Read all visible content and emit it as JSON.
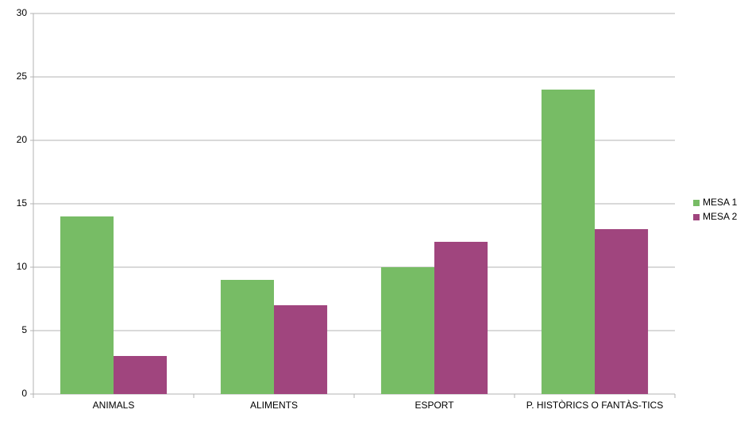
{
  "chart_data": {
    "type": "bar",
    "categories": [
      "ANIMALS",
      "ALIMENTS",
      "ESPORT",
      "P. HISTÒRICS O FANTÀS-TICS"
    ],
    "series": [
      {
        "name": "MESA 1",
        "color": "#77bc65",
        "values": [
          14,
          9,
          10,
          24
        ]
      },
      {
        "name": "MESA 2",
        "color": "#a0457e",
        "values": [
          3,
          7,
          12,
          13
        ]
      }
    ],
    "ylim": [
      0,
      30
    ],
    "yticks": [
      0,
      5,
      10,
      15,
      20,
      25,
      30
    ],
    "grid": true,
    "legend": "right"
  }
}
